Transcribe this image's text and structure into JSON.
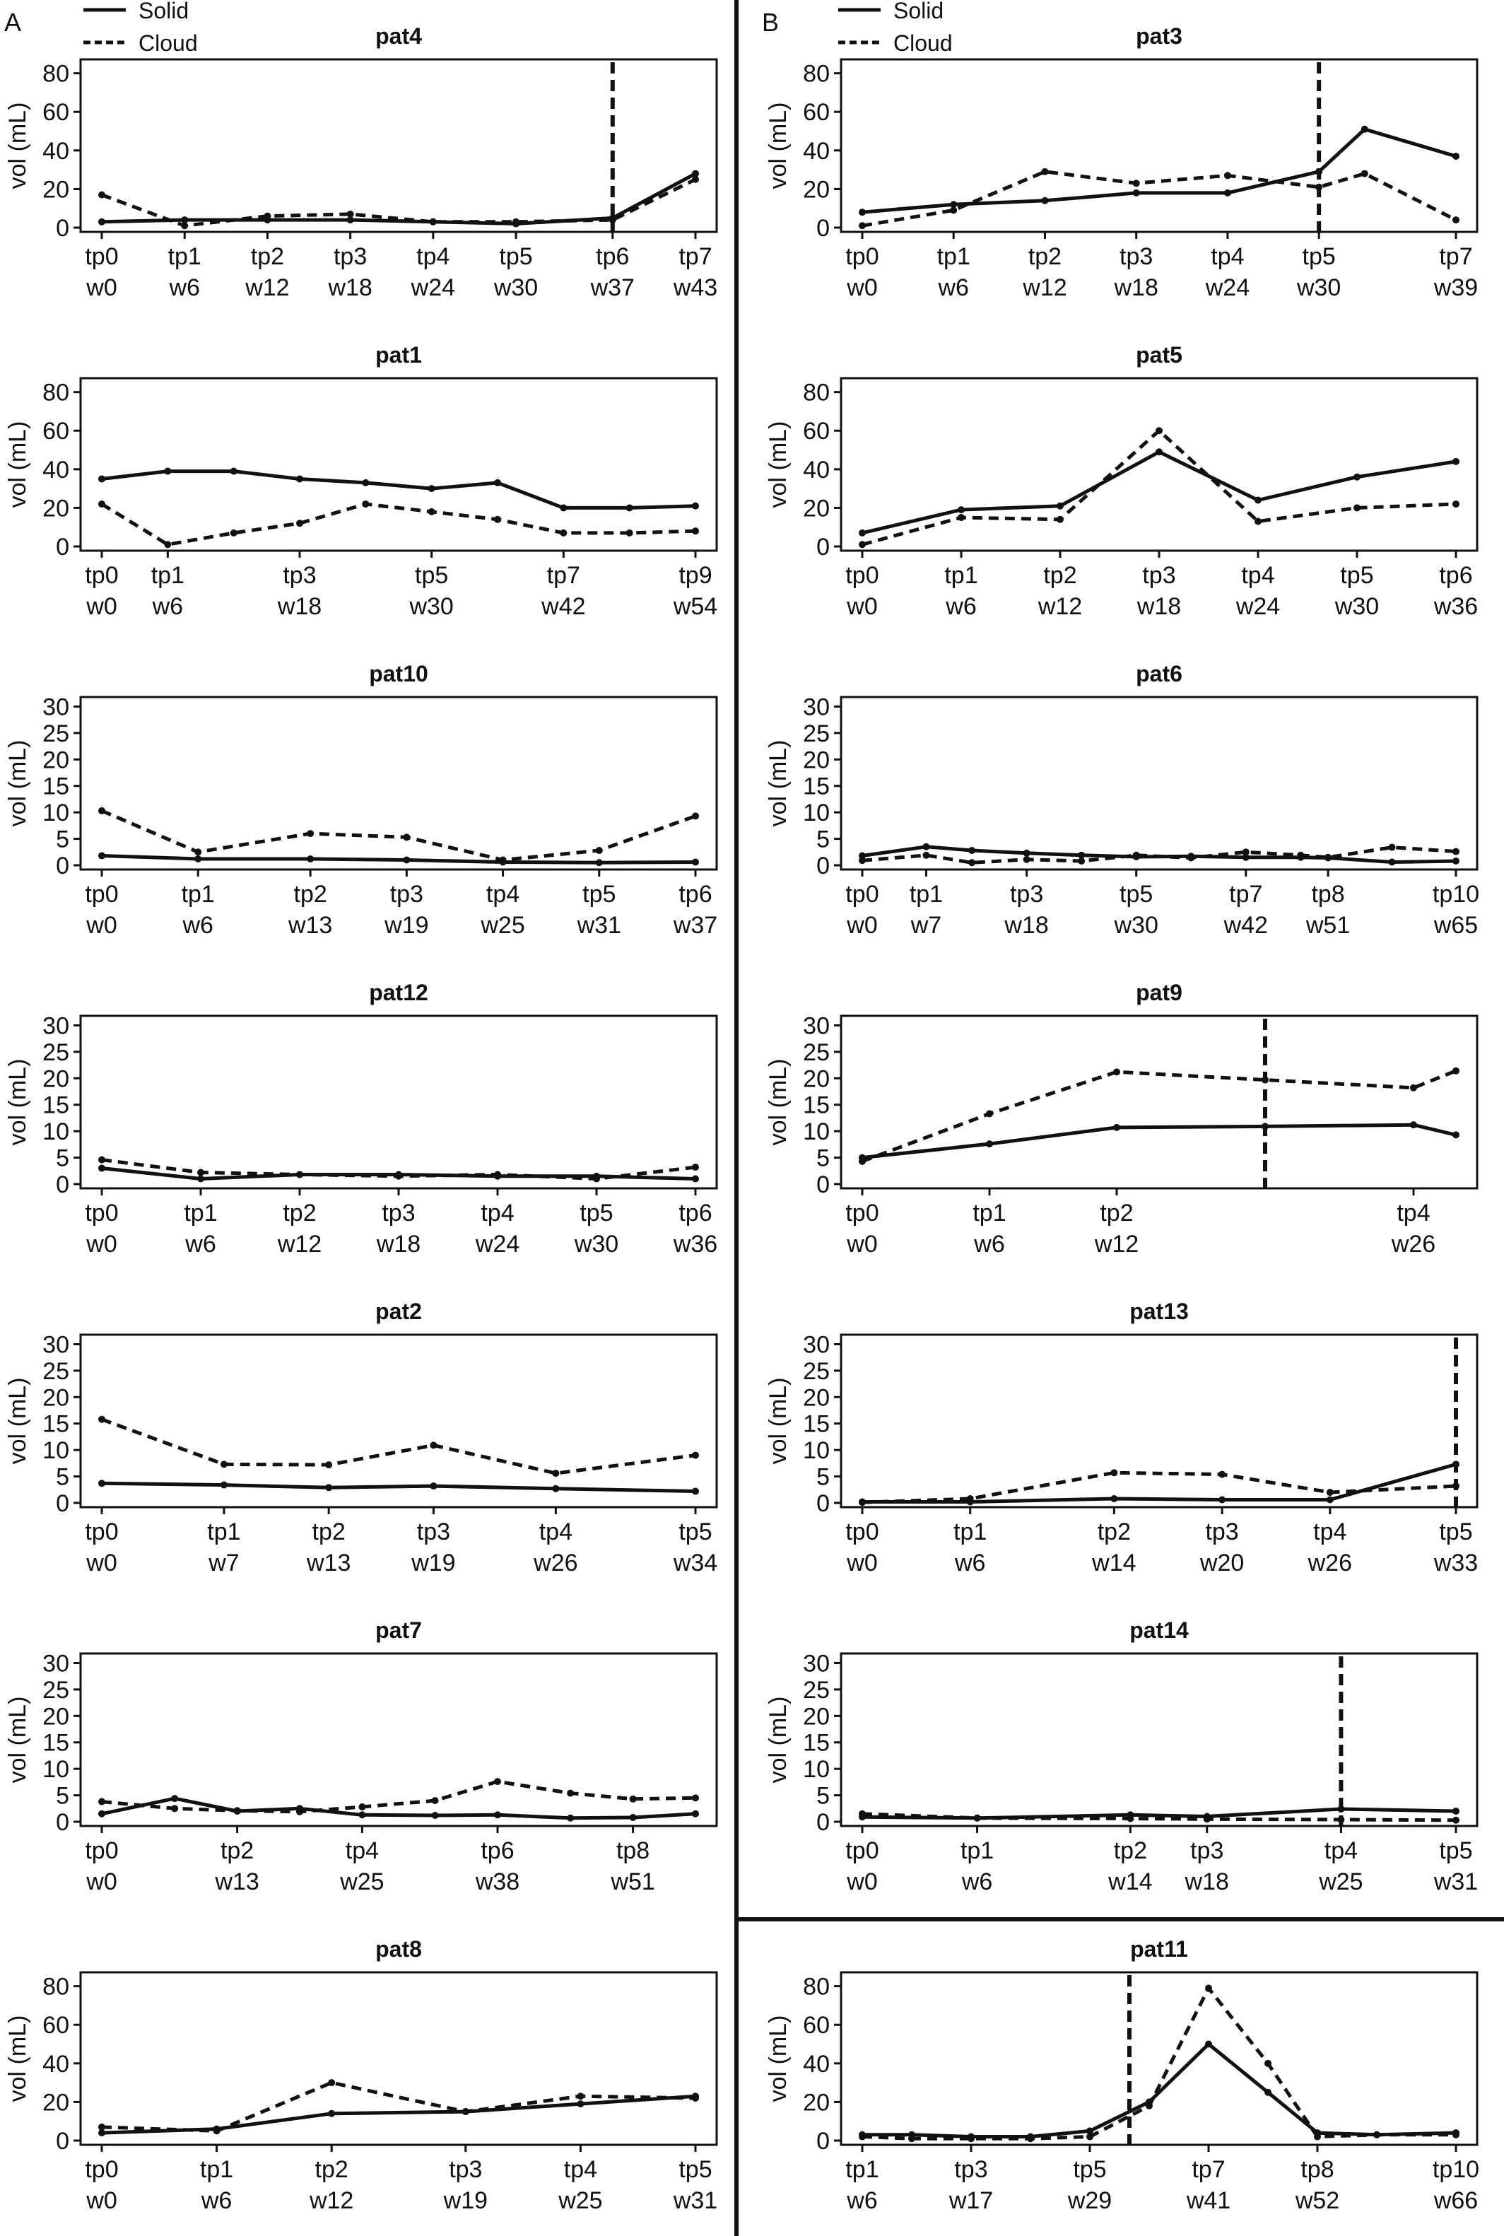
{
  "panel_labels": [
    "A",
    "B"
  ],
  "legend": [
    {
      "label": "Solid",
      "style": "solid"
    },
    {
      "label": "Cloud",
      "style": "dashed"
    }
  ],
  "chart_data": [
    {
      "type": "line",
      "title": "pat4",
      "ylabel": "vol (mL)",
      "ylim": [
        0,
        85
      ],
      "yticks": [
        0,
        20,
        40,
        60,
        80
      ],
      "x": [
        0,
        6,
        12,
        18,
        24,
        30,
        37,
        43
      ],
      "xticks": [
        {
          "tp": "tp0",
          "w": "w0",
          "x": 0
        },
        {
          "tp": "tp1",
          "w": "w6",
          "x": 6
        },
        {
          "tp": "tp2",
          "w": "w12",
          "x": 12
        },
        {
          "tp": "tp3",
          "w": "w18",
          "x": 18
        },
        {
          "tp": "tp4",
          "w": "w24",
          "x": 24
        },
        {
          "tp": "tp5",
          "w": "w30",
          "x": 30
        },
        {
          "tp": "tp6",
          "w": "w37",
          "x": 37
        },
        {
          "tp": "tp7",
          "w": "w43",
          "x": 43
        }
      ],
      "series": [
        {
          "name": "Solid",
          "values": [
            3,
            4,
            4,
            4,
            3,
            2,
            5,
            28
          ]
        },
        {
          "name": "Cloud",
          "values": [
            17,
            1,
            6,
            7,
            3,
            3,
            4,
            25
          ]
        }
      ],
      "vline": 37
    },
    {
      "type": "line",
      "title": "pat1",
      "ylabel": "vol (mL)",
      "ylim": [
        0,
        85
      ],
      "yticks": [
        0,
        20,
        40,
        60,
        80
      ],
      "x": [
        0,
        6,
        12,
        18,
        24,
        30,
        36,
        42,
        48,
        54
      ],
      "xticks": [
        {
          "tp": "tp0",
          "w": "w0",
          "x": 0
        },
        {
          "tp": "tp1",
          "w": "w6",
          "x": 6
        },
        {
          "tp": "tp3",
          "w": "w18",
          "x": 18
        },
        {
          "tp": "tp5",
          "w": "w30",
          "x": 30
        },
        {
          "tp": "tp7",
          "w": "w42",
          "x": 42
        },
        {
          "tp": "tp9",
          "w": "w54",
          "x": 54
        }
      ],
      "series": [
        {
          "name": "Solid",
          "values": [
            35,
            39,
            39,
            35,
            33,
            30,
            33,
            20,
            20,
            21
          ]
        },
        {
          "name": "Cloud",
          "values": [
            22,
            1,
            7,
            12,
            22,
            18,
            14,
            7,
            7,
            8
          ]
        }
      ]
    },
    {
      "type": "line",
      "title": "pat10",
      "ylabel": "vol (mL)",
      "ylim": [
        0,
        31
      ],
      "yticks": [
        0,
        5,
        10,
        15,
        20,
        25,
        30
      ],
      "x": [
        0,
        6,
        13,
        19,
        25,
        31,
        37
      ],
      "xticks": [
        {
          "tp": "tp0",
          "w": "w0",
          "x": 0
        },
        {
          "tp": "tp1",
          "w": "w6",
          "x": 6
        },
        {
          "tp": "tp2",
          "w": "w13",
          "x": 13
        },
        {
          "tp": "tp3",
          "w": "w19",
          "x": 19
        },
        {
          "tp": "tp4",
          "w": "w25",
          "x": 25
        },
        {
          "tp": "tp5",
          "w": "w31",
          "x": 31
        },
        {
          "tp": "tp6",
          "w": "w37",
          "x": 37
        }
      ],
      "series": [
        {
          "name": "Solid",
          "values": [
            1.8,
            1.2,
            1.2,
            1.0,
            0.6,
            0.5,
            0.6
          ]
        },
        {
          "name": "Cloud",
          "values": [
            10.3,
            2.5,
            6,
            5.3,
            1,
            2.8,
            9.3
          ]
        }
      ]
    },
    {
      "type": "line",
      "title": "pat12",
      "ylabel": "vol (mL)",
      "ylim": [
        0,
        31
      ],
      "yticks": [
        0,
        5,
        10,
        15,
        20,
        25,
        30
      ],
      "x": [
        0,
        6,
        12,
        18,
        24,
        30,
        36
      ],
      "xticks": [
        {
          "tp": "tp0",
          "w": "w0",
          "x": 0
        },
        {
          "tp": "tp1",
          "w": "w6",
          "x": 6
        },
        {
          "tp": "tp2",
          "w": "w12",
          "x": 12
        },
        {
          "tp": "tp3",
          "w": "w18",
          "x": 18
        },
        {
          "tp": "tp4",
          "w": "w24",
          "x": 24
        },
        {
          "tp": "tp5",
          "w": "w30",
          "x": 30
        },
        {
          "tp": "tp6",
          "w": "w36",
          "x": 36
        }
      ],
      "series": [
        {
          "name": "Solid",
          "values": [
            3,
            1,
            1.8,
            1.8,
            1.5,
            1.5,
            1
          ]
        },
        {
          "name": "Cloud",
          "values": [
            4.6,
            2.2,
            1.8,
            1.5,
            1.8,
            1,
            3.2
          ]
        }
      ]
    },
    {
      "type": "line",
      "title": "pat2",
      "ylabel": "vol (mL)",
      "ylim": [
        0,
        31
      ],
      "yticks": [
        0,
        5,
        10,
        15,
        20,
        25,
        30
      ],
      "x": [
        0,
        7,
        13,
        19,
        26,
        34
      ],
      "xticks": [
        {
          "tp": "tp0",
          "w": "w0",
          "x": 0
        },
        {
          "tp": "tp1",
          "w": "w7",
          "x": 7
        },
        {
          "tp": "tp2",
          "w": "w13",
          "x": 13
        },
        {
          "tp": "tp3",
          "w": "w19",
          "x": 19
        },
        {
          "tp": "tp4",
          "w": "w26",
          "x": 26
        },
        {
          "tp": "tp5",
          "w": "w34",
          "x": 34
        }
      ],
      "series": [
        {
          "name": "Solid",
          "values": [
            3.7,
            3.4,
            2.9,
            3.2,
            2.7,
            2.2
          ]
        },
        {
          "name": "Cloud",
          "values": [
            15.8,
            7.3,
            7.2,
            10.9,
            5.6,
            9
          ]
        }
      ]
    },
    {
      "type": "line",
      "title": "pat7",
      "ylabel": "vol (mL)",
      "ylim": [
        0,
        31
      ],
      "yticks": [
        0,
        5,
        10,
        15,
        20,
        25,
        30
      ],
      "x": [
        0,
        7,
        13,
        19,
        25,
        32,
        38,
        45,
        51,
        57
      ],
      "xticks": [
        {
          "tp": "tp0",
          "w": "w0",
          "x": 0
        },
        {
          "tp": "tp2",
          "w": "w13",
          "x": 13
        },
        {
          "tp": "tp4",
          "w": "w25",
          "x": 25
        },
        {
          "tp": "tp6",
          "w": "w38",
          "x": 38
        },
        {
          "tp": "tp8",
          "w": "w51",
          "x": 51
        }
      ],
      "series": [
        {
          "name": "Solid",
          "values": [
            1.5,
            4.4,
            2,
            2.5,
            1.3,
            1.2,
            1.3,
            0.7,
            0.8,
            1.5
          ]
        },
        {
          "name": "Cloud",
          "values": [
            3.8,
            2.5,
            2.1,
            1.9,
            2.8,
            4,
            7.6,
            5.4,
            4.3,
            4.5
          ]
        }
      ]
    },
    {
      "type": "line",
      "title": "pat8",
      "ylabel": "vol (mL)",
      "ylim": [
        0,
        85
      ],
      "yticks": [
        0,
        20,
        40,
        60,
        80
      ],
      "x": [
        0,
        6,
        12,
        19,
        25,
        31
      ],
      "xticks": [
        {
          "tp": "tp0",
          "w": "w0",
          "x": 0
        },
        {
          "tp": "tp1",
          "w": "w6",
          "x": 6
        },
        {
          "tp": "tp2",
          "w": "w12",
          "x": 12
        },
        {
          "tp": "tp3",
          "w": "w19",
          "x": 19
        },
        {
          "tp": "tp4",
          "w": "w25",
          "x": 25
        },
        {
          "tp": "tp5",
          "w": "w31",
          "x": 31
        }
      ],
      "series": [
        {
          "name": "Solid",
          "values": [
            4,
            6,
            14,
            15,
            19,
            23
          ]
        },
        {
          "name": "Cloud",
          "values": [
            7,
            5,
            30,
            15,
            23,
            22
          ]
        }
      ]
    },
    {
      "type": "line",
      "title": "pat3",
      "ylabel": "vol (mL)",
      "ylim": [
        0,
        85
      ],
      "yticks": [
        0,
        20,
        40,
        60,
        80
      ],
      "x": [
        0,
        6,
        12,
        18,
        24,
        30,
        33,
        39
      ],
      "xticks": [
        {
          "tp": "tp0",
          "w": "w0",
          "x": 0
        },
        {
          "tp": "tp1",
          "w": "w6",
          "x": 6
        },
        {
          "tp": "tp2",
          "w": "w12",
          "x": 12
        },
        {
          "tp": "tp3",
          "w": "w18",
          "x": 18
        },
        {
          "tp": "tp4",
          "w": "w24",
          "x": 24
        },
        {
          "tp": "tp5",
          "w": "w30",
          "x": 30
        },
        {
          "tp": "tp7",
          "w": "w39",
          "x": 39
        }
      ],
      "series": [
        {
          "name": "Solid",
          "values": [
            8,
            12,
            14,
            18,
            18,
            29,
            51,
            37
          ]
        },
        {
          "name": "Cloud",
          "values": [
            1,
            9,
            29,
            23,
            27,
            21,
            28,
            4
          ]
        }
      ],
      "vline": 30
    },
    {
      "type": "line",
      "title": "pat5",
      "ylabel": "vol (mL)",
      "ylim": [
        0,
        85
      ],
      "yticks": [
        0,
        20,
        40,
        60,
        80
      ],
      "x": [
        0,
        6,
        12,
        18,
        24,
        30,
        36
      ],
      "xticks": [
        {
          "tp": "tp0",
          "w": "w0",
          "x": 0
        },
        {
          "tp": "tp1",
          "w": "w6",
          "x": 6
        },
        {
          "tp": "tp2",
          "w": "w12",
          "x": 12
        },
        {
          "tp": "tp3",
          "w": "w18",
          "x": 18
        },
        {
          "tp": "tp4",
          "w": "w24",
          "x": 24
        },
        {
          "tp": "tp5",
          "w": "w30",
          "x": 30
        },
        {
          "tp": "tp6",
          "w": "w36",
          "x": 36
        }
      ],
      "series": [
        {
          "name": "Solid",
          "values": [
            7,
            19,
            21,
            49,
            24,
            36,
            44
          ]
        },
        {
          "name": "Cloud",
          "values": [
            1,
            15,
            14,
            60,
            13,
            20,
            22
          ]
        }
      ]
    },
    {
      "type": "line",
      "title": "pat6",
      "ylabel": "vol (mL)",
      "ylim": [
        0,
        31
      ],
      "yticks": [
        0,
        5,
        10,
        15,
        20,
        25,
        30
      ],
      "x": [
        0,
        7,
        12,
        18,
        24,
        30,
        36,
        42,
        48,
        51,
        58,
        65
      ],
      "xticks": [
        {
          "tp": "tp0",
          "w": "w0",
          "x": 0
        },
        {
          "tp": "tp1",
          "w": "w7",
          "x": 7
        },
        {
          "tp": "tp3",
          "w": "w18",
          "x": 18
        },
        {
          "tp": "tp5",
          "w": "w30",
          "x": 30
        },
        {
          "tp": "tp7",
          "w": "w42",
          "x": 42
        },
        {
          "tp": "tp8",
          "w": "w51",
          "x": 51
        },
        {
          "tp": "tp10",
          "w": "w65",
          "x": 65
        }
      ],
      "series": [
        {
          "name": "Solid",
          "values": [
            1.8,
            3.5,
            2.8,
            2.3,
            1.9,
            1.6,
            1.7,
            1.5,
            1.5,
            1.4,
            0.6,
            0.8
          ]
        },
        {
          "name": "Cloud",
          "values": [
            0.9,
            1.9,
            0.5,
            1.1,
            0.8,
            1.9,
            1.4,
            2.5,
            1.9,
            1.5,
            3.4,
            2.6
          ]
        }
      ]
    },
    {
      "type": "line",
      "title": "pat9",
      "ylabel": "vol (mL)",
      "ylim": [
        0,
        31
      ],
      "yticks": [
        0,
        5,
        10,
        15,
        20,
        25,
        30
      ],
      "x": [
        0,
        6,
        12,
        19,
        26,
        28
      ],
      "xticks": [
        {
          "tp": "tp0",
          "w": "w0",
          "x": 0
        },
        {
          "tp": "tp1",
          "w": "w6",
          "x": 6
        },
        {
          "tp": "tp2",
          "w": "w12",
          "x": 12
        },
        {
          "tp": "tp4",
          "w": "w26",
          "x": 26
        }
      ],
      "series": [
        {
          "name": "Solid",
          "values": [
            5,
            7.6,
            10.7,
            10.9,
            11.2,
            9.3
          ]
        },
        {
          "name": "Cloud",
          "values": [
            4.3,
            13.3,
            21.2,
            19.7,
            18.2,
            21.4
          ]
        }
      ],
      "vline": 19
    },
    {
      "type": "line",
      "title": "pat13",
      "ylabel": "vol (mL)",
      "ylim": [
        0,
        31
      ],
      "yticks": [
        0,
        5,
        10,
        15,
        20,
        25,
        30
      ],
      "x": [
        0,
        6,
        14,
        20,
        26,
        33
      ],
      "xticks": [
        {
          "tp": "tp0",
          "w": "w0",
          "x": 0
        },
        {
          "tp": "tp1",
          "w": "w6",
          "x": 6
        },
        {
          "tp": "tp2",
          "w": "w14",
          "x": 14
        },
        {
          "tp": "tp3",
          "w": "w20",
          "x": 20
        },
        {
          "tp": "tp4",
          "w": "w26",
          "x": 26
        },
        {
          "tp": "tp5",
          "w": "w33",
          "x": 33
        }
      ],
      "series": [
        {
          "name": "Solid",
          "values": [
            0.2,
            0.2,
            0.8,
            0.6,
            0.6,
            7.3
          ]
        },
        {
          "name": "Cloud",
          "values": [
            0.1,
            0.8,
            5.7,
            5.4,
            2,
            3.2
          ]
        }
      ],
      "vline": 33
    },
    {
      "type": "line",
      "title": "pat14",
      "ylabel": "vol (mL)",
      "ylim": [
        0,
        31
      ],
      "yticks": [
        0,
        5,
        10,
        15,
        20,
        25,
        30
      ],
      "x": [
        0,
        6,
        14,
        18,
        25,
        31
      ],
      "xticks": [
        {
          "tp": "tp0",
          "w": "w0",
          "x": 0
        },
        {
          "tp": "tp1",
          "w": "w6",
          "x": 6
        },
        {
          "tp": "tp2",
          "w": "w14",
          "x": 14
        },
        {
          "tp": "tp3",
          "w": "w18",
          "x": 18
        },
        {
          "tp": "tp4",
          "w": "w25",
          "x": 25
        },
        {
          "tp": "tp5",
          "w": "w31",
          "x": 31
        }
      ],
      "series": [
        {
          "name": "Solid",
          "values": [
            0.9,
            0.7,
            1.3,
            1,
            2.4,
            2
          ]
        },
        {
          "name": "Cloud",
          "values": [
            1.5,
            0.7,
            0.6,
            0.5,
            0.4,
            0.3
          ]
        }
      ],
      "vline": 25
    },
    {
      "type": "line",
      "title": "pat11",
      "ylabel": "vol (mL)",
      "ylim": [
        0,
        85
      ],
      "yticks": [
        0,
        20,
        40,
        60,
        80
      ],
      "x": [
        6,
        11,
        17,
        23,
        29,
        35,
        41,
        47,
        52,
        58,
        66
      ],
      "xticks": [
        {
          "tp": "tp1",
          "w": "w6",
          "x": 6
        },
        {
          "tp": "tp3",
          "w": "w17",
          "x": 17
        },
        {
          "tp": "tp5",
          "w": "w29",
          "x": 29
        },
        {
          "tp": "tp7",
          "w": "w41",
          "x": 41
        },
        {
          "tp": "tp8",
          "w": "w52",
          "x": 52
        },
        {
          "tp": "tp10",
          "w": "w66",
          "x": 66
        }
      ],
      "series": [
        {
          "name": "Solid",
          "values": [
            3,
            3,
            2,
            2,
            5,
            20,
            50,
            25,
            4,
            3,
            4
          ]
        },
        {
          "name": "Cloud",
          "values": [
            2,
            1,
            1,
            1,
            2,
            18,
            79,
            40,
            2,
            3,
            3
          ]
        }
      ],
      "vline": 33
    }
  ]
}
